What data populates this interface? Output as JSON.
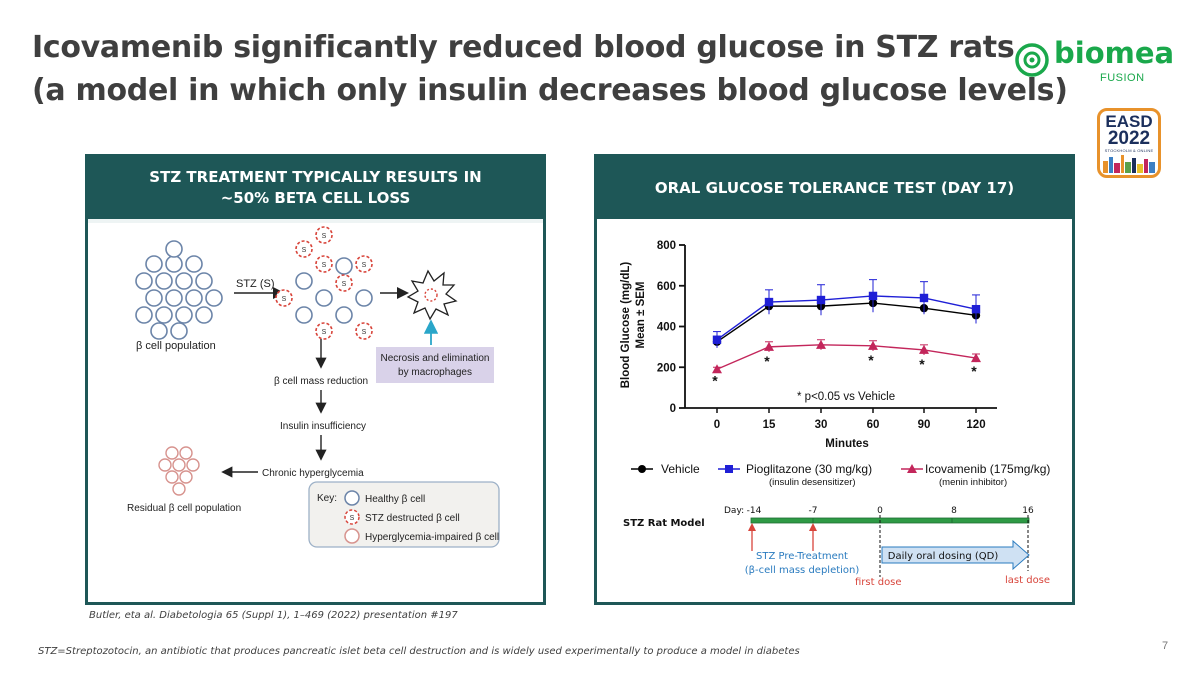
{
  "slide": {
    "title_line1": "Icovamenib significantly reduced blood glucose in STZ rats",
    "title_line2": "(a model in which only insulin decreases blood glucose levels)",
    "page_number": "7"
  },
  "logo": {
    "word": "biomea",
    "sub": "FUSION",
    "color": "#1aa84b"
  },
  "badge": {
    "top": "EASD",
    "year": "2022",
    "sub": "STOCKHOLM & ONLINE"
  },
  "left_panel": {
    "header": "STZ TREATMENT TYPICALLY RESULTS IN\n~50% BETA CELL LOSS",
    "diagram": {
      "beta_cell_population": "β cell population",
      "stz_label": "STZ (S)",
      "necrosis_line1": "Necrosis and elimination",
      "necrosis_line2": "by macrophages",
      "mass_reduction": "β cell mass reduction",
      "insulin_insufficiency": "Insulin insufficiency",
      "chronic_hyperglycemia": "Chronic hyperglycemia",
      "residual": "Residual β cell population",
      "key_title": "Key:",
      "key_healthy": "Healthy β cell",
      "key_stz": "STZ destructed β cell",
      "key_impaired": "Hyperglycemia-impaired β cell",
      "cell_marker": "S"
    }
  },
  "right_panel": {
    "header": "ORAL GLUCOSE TOLERANCE TEST (DAY 17)",
    "significance_note": "* p<0.05 vs Vehicle",
    "legend": [
      {
        "name": "Vehicle",
        "sub": ""
      },
      {
        "name": "Pioglitazone (30 mg/kg)",
        "sub": "(insulin desensitizer)"
      },
      {
        "name": "Icovamenib (175mg/kg)",
        "sub": "(menin inhibitor)"
      }
    ],
    "timeline": {
      "model_label": "STZ Rat Model",
      "day_label": "Day:",
      "days": [
        "-14",
        "-7",
        "0",
        "8",
        "16"
      ],
      "pretreatment_line1": "STZ Pre-Treatment",
      "pretreatment_line2": "(β-cell mass depletion)",
      "dosing_label": "Daily oral dosing (QD)",
      "first_dose": "first dose",
      "last_dose": "last dose"
    }
  },
  "chart_data": {
    "type": "line",
    "categories": [
      "0",
      "15",
      "30",
      "60",
      "90",
      "120"
    ],
    "xlabel": "Minutes",
    "ylabel": "Blood Glucose (mg/dL)",
    "ylabel2": "Mean ± SEM",
    "ylim": [
      0,
      800
    ],
    "yticks": [
      0,
      200,
      400,
      600,
      800
    ],
    "series": [
      {
        "name": "Vehicle",
        "color": "#000000",
        "marker": "circle",
        "values": [
          325,
          500,
          500,
          515,
          490,
          455
        ],
        "errors": [
          0,
          0,
          0,
          0,
          0,
          0
        ]
      },
      {
        "name": "Pioglitazone (30 mg/kg)",
        "color": "#1f1fd6",
        "marker": "square",
        "values": [
          335,
          520,
          530,
          550,
          540,
          485
        ],
        "errors": [
          40,
          60,
          75,
          80,
          80,
          70
        ]
      },
      {
        "name": "Icovamenib (175mg/kg)",
        "color": "#c3265b",
        "marker": "triangle",
        "values": [
          190,
          300,
          310,
          305,
          285,
          245
        ],
        "errors": [
          10,
          25,
          25,
          25,
          25,
          20
        ]
      }
    ],
    "significant": [
      true,
      true,
      false,
      true,
      true,
      true
    ]
  },
  "footnotes": {
    "citation": "Butler, eta al. Diabetologia 65 (Suppl 1), 1–469 (2022) presentation #197",
    "stz_definition": "STZ=Streptozotocin, an antibiotic that produces pancreatic islet beta cell destruction and is widely used experimentally to produce a model in diabetes"
  }
}
